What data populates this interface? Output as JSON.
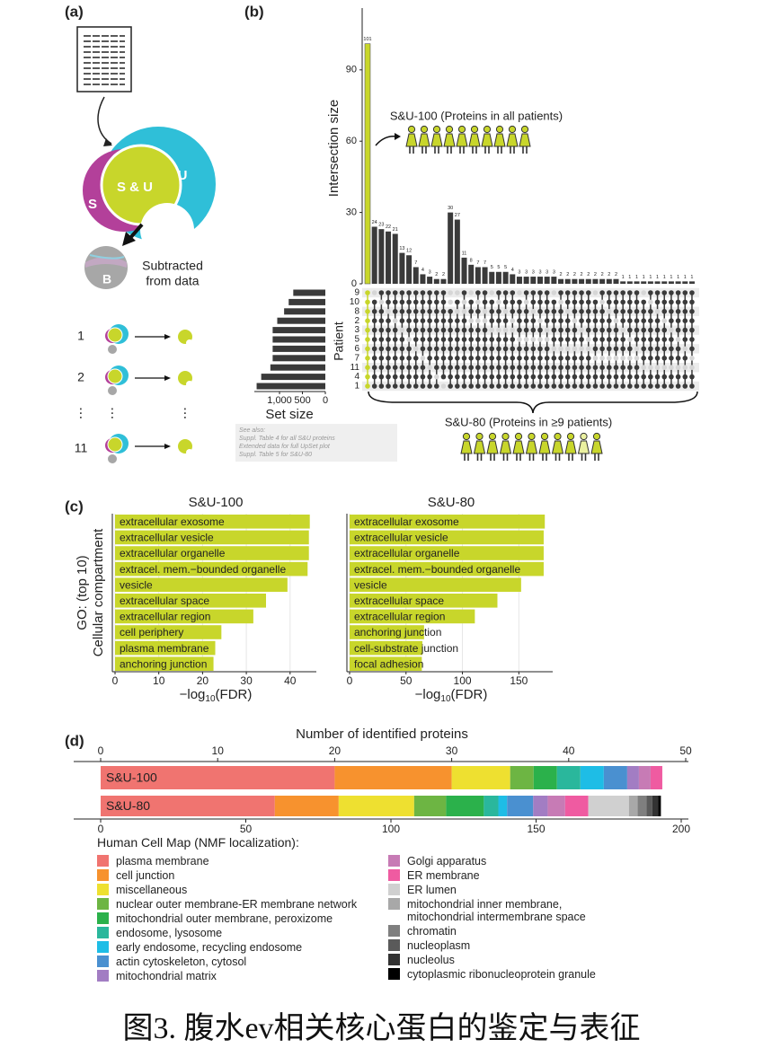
{
  "caption": "图3. 腹水ev相关核心蛋白的鉴定与表征",
  "panel_labels": [
    "(a)",
    "(b)",
    "(c)",
    "(d)"
  ],
  "panel_a": {
    "su": "S & U",
    "s": "S",
    "u": "U",
    "b": "B",
    "subtracted": [
      "Subtracted",
      "from data"
    ],
    "rows": [
      "1",
      "2",
      "⋮",
      "11"
    ]
  },
  "note": [
    "See also:",
    "Suppl. Table 4 for all S&U proteins",
    "Extended data for full UpSet plot",
    "Suppl. Table 5 for S&U-80"
  ],
  "chart_data": [
    {
      "type": "upset_intersections",
      "ylabel": "Intersection size",
      "values": [
        101,
        24,
        23,
        22,
        21,
        13,
        12,
        7,
        4,
        3,
        2,
        2,
        30,
        27,
        11,
        8,
        7,
        7,
        5,
        5,
        5,
        4,
        3,
        3,
        3,
        3,
        3,
        3,
        2,
        2,
        2,
        2,
        2,
        2,
        2,
        2,
        2,
        1,
        1,
        1,
        1,
        1,
        1,
        1,
        1,
        1,
        1,
        1
      ],
      "ylim": [
        0,
        116
      ],
      "yticks": [
        0,
        30,
        60,
        90
      ],
      "color": "#3a3a3a",
      "highlight_color": "#c8d62b",
      "set_label": "Patient",
      "sets": [
        "9",
        "10",
        "8",
        "2",
        "3",
        "5",
        "6",
        "7",
        "11",
        "4",
        "1"
      ],
      "membership": [
        "11111111111",
        "01111111111",
        "10111111111",
        "11011111111",
        "11101111111",
        "11110111111",
        "11111011111",
        "11111101111",
        "11111110111",
        "11111111011",
        "11111111101",
        "11111111110",
        "00111111111",
        "01011111111",
        "10011111111",
        "01101111111",
        "10101111111",
        "11001111111",
        "01110111111",
        "10110111111",
        "11010111111",
        "11100111111",
        "01111011111",
        "10111011111",
        "11011011111",
        "11101011111",
        "11110011111",
        "01111101111",
        "10111101111",
        "11011101111",
        "11101101111",
        "11110101111",
        "11111001111",
        "01111110111",
        "10111110111",
        "11011110111",
        "11101110111",
        "11110110111",
        "11111010111",
        "11111100111",
        "01111111011",
        "10111111011",
        "11011111011",
        "11101111011",
        "11110111011",
        "11111011011",
        "11111101011",
        "11111110011"
      ],
      "annotations": [
        "S&U-100 (Proteins in all patients)",
        "S&U-80 (Proteins in ≥9 patients)"
      ]
    },
    {
      "type": "set_size_bar",
      "xlabel": "Set size",
      "values": [
        700,
        800,
        900,
        1050,
        1150,
        1150,
        1150,
        1150,
        1200,
        1400,
        1500
      ],
      "xlim": [
        1550,
        0
      ],
      "xticks": [
        {
          "value": 1000,
          "label": "1,000"
        },
        500,
        0
      ],
      "color": "#3a3a3a"
    },
    {
      "type": "bar",
      "title": "S&U-100",
      "ylabel": [
        "GO: (top 10)",
        "Cellular compartment"
      ],
      "xlabel": [
        "−log",
        "10",
        "(FDR)"
      ],
      "categories": [
        "extracellular exosome",
        "extracellular vesicle",
        "extracellular organelle",
        "extracel. mem.−bounded organelle",
        "vesicle",
        "extracellular space",
        "extracellular region",
        "cell periphery",
        "plasma membrane",
        "anchoring junction"
      ],
      "values": [
        44.5,
        44.3,
        44.3,
        44,
        39.4,
        34.5,
        31.6,
        24.3,
        22.9,
        22.5
      ],
      "xlim": [
        0,
        46
      ],
      "xticks": [
        0,
        10,
        20,
        30,
        40
      ],
      "color": "#c8d62b",
      "grid": true
    },
    {
      "type": "bar",
      "title": "S&U-80",
      "xlabel": [
        "−log",
        "10",
        "(FDR)"
      ],
      "categories": [
        "extracellular exosome",
        "extracellular vesicle",
        "extracellular organelle",
        "extracel. mem.−bounded organelle",
        "vesicle",
        "extracellular space",
        "extracellular region",
        "anchoring junction",
        "cell-substrate junction",
        "focal adhesion"
      ],
      "values": [
        173,
        172,
        172,
        172,
        152,
        131,
        111,
        66,
        64.5,
        64
      ],
      "xlim": [
        0,
        180
      ],
      "xticks": [
        0,
        50,
        100,
        150
      ],
      "color": "#c8d62b",
      "grid": true
    },
    {
      "type": "stacked_bar",
      "xlabel": "Number of identified proteins",
      "categories": [
        "S&U-100",
        "S&U-80"
      ],
      "bar_axis": [
        "x",
        "x2"
      ],
      "xlim": [
        0,
        50
      ],
      "xticks": [
        0,
        10,
        20,
        30,
        40,
        50
      ],
      "x2lim": [
        0,
        200
      ],
      "x2ticks": [
        0,
        50,
        100,
        150,
        200
      ],
      "legend_title": "Human Cell Map (NMF localization):",
      "series": [
        {
          "name": "plasma membrane",
          "color": "#f07470",
          "values": [
            20,
            60
          ]
        },
        {
          "name": "cell junction",
          "color": "#f7922e",
          "values": [
            10,
            22
          ]
        },
        {
          "name": "miscellaneous",
          "color": "#eee030",
          "values": [
            5,
            26
          ]
        },
        {
          "name": "nuclear outer membrane-ER membrane network",
          "color": "#6db543",
          "values": [
            2,
            11
          ]
        },
        {
          "name": "mitochondrial outer membrane, peroxizome",
          "color": "#2bb14b",
          "values": [
            2,
            13
          ]
        },
        {
          "name": "endosome, lysosome",
          "color": "#2ab79c",
          "values": [
            2,
            5
          ]
        },
        {
          "name": "early endosome, recycling endosome",
          "color": "#1ebde6",
          "values": [
            2,
            3
          ]
        },
        {
          "name": "actin cytoskeleton, cytosol",
          "color": "#4a90d0",
          "values": [
            2,
            9
          ]
        },
        {
          "name": "mitochondrial matrix",
          "color": "#a27dc3",
          "values": [
            1,
            5
          ]
        },
        {
          "name": "Golgi apparatus",
          "color": "#c77bb5",
          "values": [
            1,
            6
          ]
        },
        {
          "name": "ER membrane",
          "color": "#ef5ba1",
          "values": [
            1,
            8
          ]
        },
        {
          "name": "ER lumen",
          "color": "#d0d0d0",
          "values": [
            0,
            14
          ]
        },
        {
          "name": "mitochondrial inner membrane, mitochondrial intermembrane space",
          "color": "#a8a8a8",
          "values": [
            0,
            3
          ]
        },
        {
          "name": "chromatin",
          "color": "#7f7f7f",
          "values": [
            0,
            3
          ]
        },
        {
          "name": "nucleoplasm",
          "color": "#5a5a5a",
          "values": [
            0,
            2
          ]
        },
        {
          "name": "nucleolus",
          "color": "#333333",
          "values": [
            0,
            2
          ]
        },
        {
          "name": "cytoplasmic ribonucleoprotein granule",
          "color": "#000000",
          "values": [
            0,
            1
          ]
        }
      ]
    }
  ]
}
